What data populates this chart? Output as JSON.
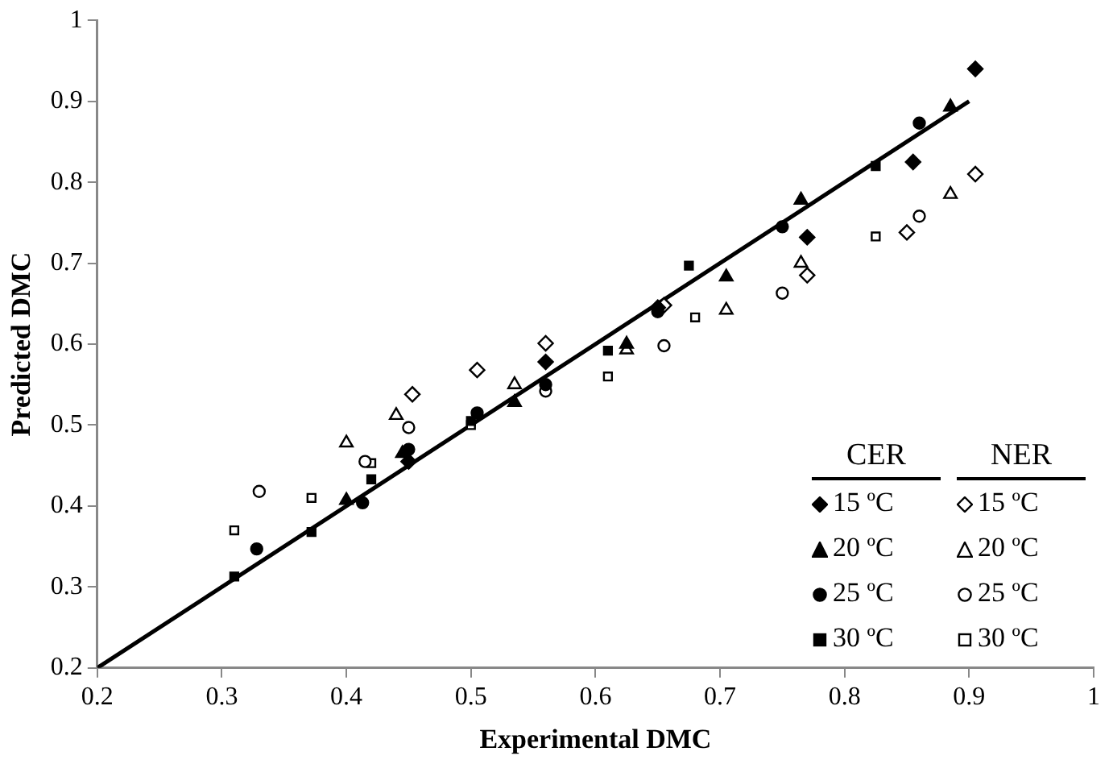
{
  "chart_data": {
    "type": "scatter",
    "xlabel": "Experimental DMC",
    "ylabel": "Predicted DMC",
    "xlim": [
      0.2,
      1
    ],
    "xticks": [
      0.2,
      0.3,
      0.4,
      0.5,
      0.6,
      0.7,
      0.8,
      0.9,
      1
    ],
    "ylim": [
      0.2,
      1
    ],
    "yticks": [
      0.2,
      0.3,
      0.4,
      0.5,
      0.6,
      0.7,
      0.8,
      0.9,
      1
    ],
    "grid": false,
    "legend": "right",
    "annotations": [
      "CER",
      "NER"
    ],
    "series": [
      {
        "name": "15 ºC",
        "color": "#000000",
        "marker": "diamond",
        "x": [
          0.45,
          0.56,
          0.65,
          0.77,
          0.855,
          0.905
        ],
        "values": [
          0.455,
          0.578,
          0.645,
          0.732,
          0.825,
          0.94
        ]
      },
      {
        "name": "20 ºC",
        "color": "#000000",
        "marker": "triangle",
        "x": [
          0.4,
          0.445,
          0.535,
          0.625,
          0.705,
          0.765,
          0.885
        ],
        "values": [
          0.407,
          0.465,
          0.528,
          0.6,
          0.683,
          0.778,
          0.893
        ]
      },
      {
        "name": "25 ºC",
        "color": "#000000",
        "marker": "circle",
        "x": [
          0.328,
          0.413,
          0.45,
          0.505,
          0.56,
          0.65,
          0.75,
          0.86
        ],
        "values": [
          0.347,
          0.404,
          0.47,
          0.515,
          0.55,
          0.64,
          0.745,
          0.873
        ]
      },
      {
        "name": "30 ºC",
        "color": "#000000",
        "marker": "square",
        "x": [
          0.31,
          0.372,
          0.42,
          0.5,
          0.61,
          0.675,
          0.825
        ],
        "values": [
          0.313,
          0.368,
          0.433,
          0.505,
          0.592,
          0.697,
          0.82
        ]
      },
      {
        "name": "15 ºC",
        "color": "#ffffff",
        "marker": "diamond",
        "x": [
          0.453,
          0.505,
          0.56,
          0.655,
          0.77,
          0.85,
          0.905
        ],
        "values": [
          0.538,
          0.568,
          0.601,
          0.648,
          0.685,
          0.738,
          0.81
        ]
      },
      {
        "name": "20 ºC",
        "color": "#ffffff",
        "marker": "triangle",
        "x": [
          0.4,
          0.44,
          0.535,
          0.625,
          0.705,
          0.765,
          0.885
        ],
        "values": [
          0.478,
          0.512,
          0.55,
          0.593,
          0.642,
          0.7,
          0.785
        ]
      },
      {
        "name": "25 ºC",
        "color": "#ffffff",
        "marker": "circle",
        "x": [
          0.33,
          0.415,
          0.45,
          0.56,
          0.655,
          0.75,
          0.86
        ],
        "values": [
          0.418,
          0.455,
          0.497,
          0.542,
          0.598,
          0.663,
          0.758
        ]
      },
      {
        "name": "30 ºC",
        "color": "#ffffff",
        "marker": "square",
        "x": [
          0.31,
          0.372,
          0.42,
          0.5,
          0.61,
          0.68,
          0.825
        ],
        "values": [
          0.37,
          0.41,
          0.453,
          0.5,
          0.56,
          0.633,
          0.733
        ]
      },
      {
        "type": "line",
        "color": "#000000",
        "marker": "none",
        "line_style": "solid",
        "x": [
          0.2,
          0.9
        ],
        "values": [
          0.2,
          0.9
        ]
      }
    ]
  }
}
